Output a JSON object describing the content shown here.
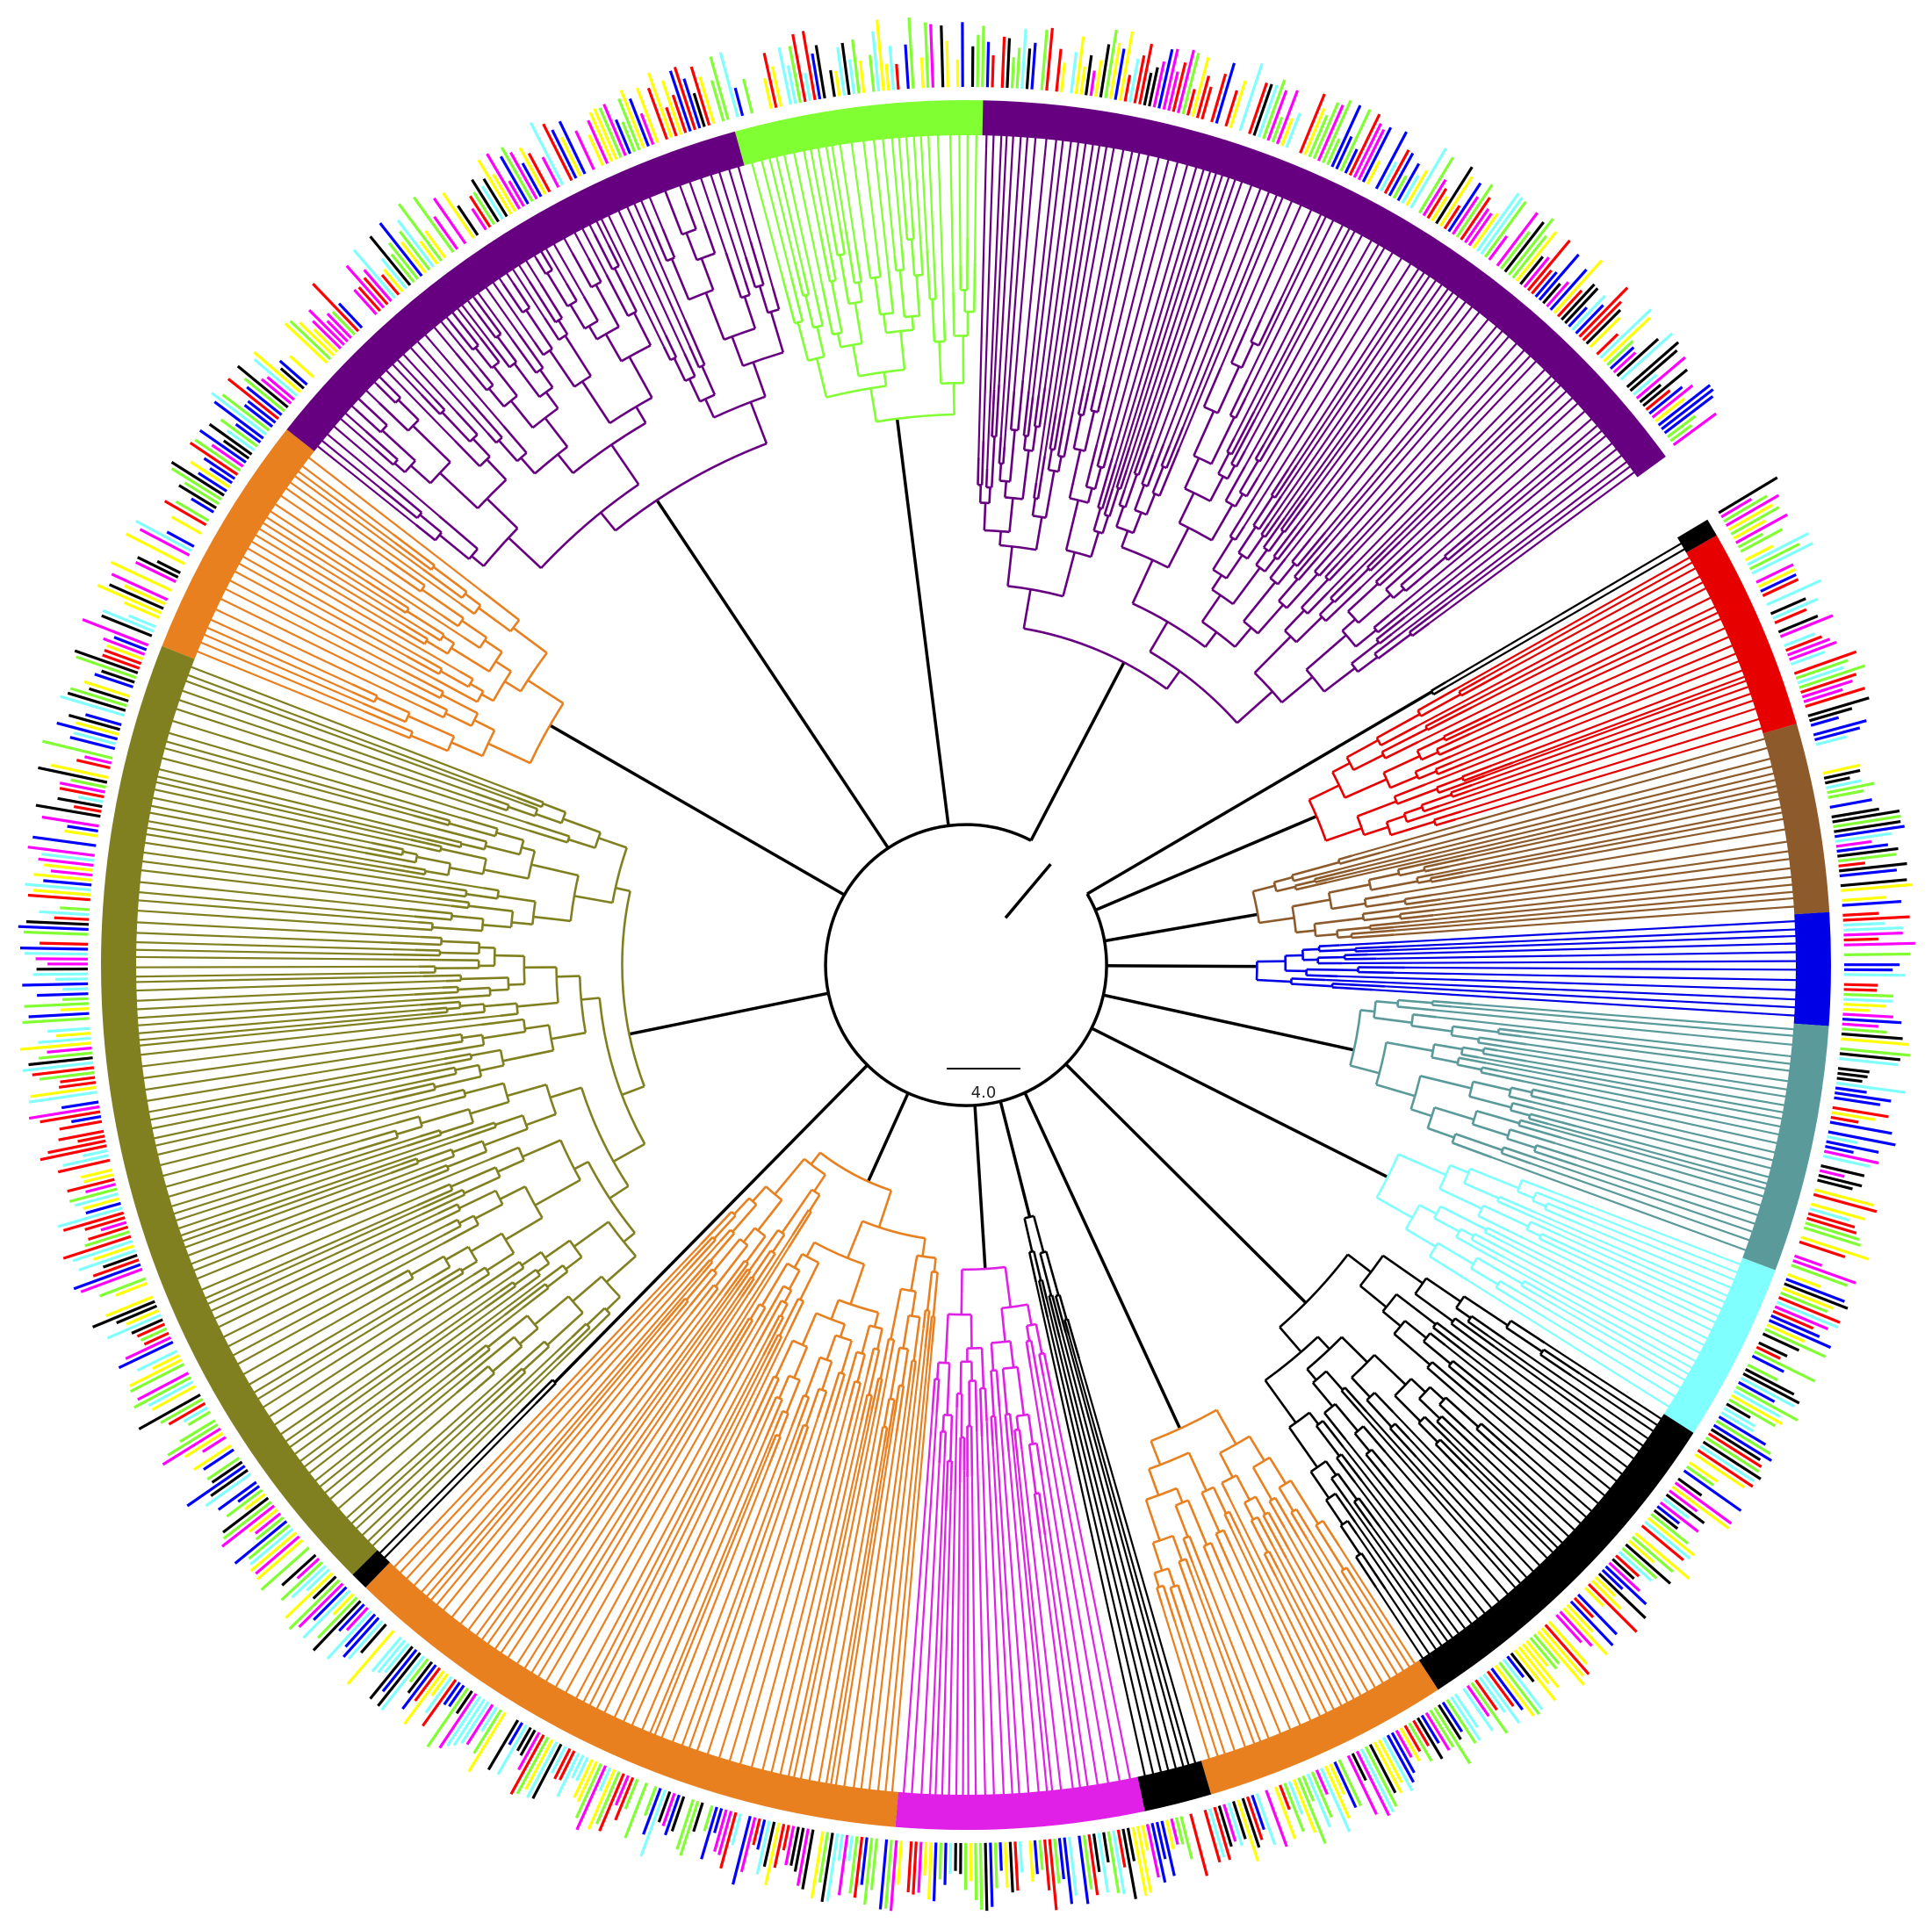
{
  "figure": {
    "type": "circular phylogenetic tree",
    "background": "#ffffff",
    "branch_default_color": "#000000",
    "scale_bar": {
      "label": "4.0",
      "value": 4.0
    }
  },
  "clades": [
    {
      "name": "black-top",
      "color": "#000000",
      "tips": 4
    },
    {
      "name": "red",
      "color": "#e60000",
      "tips": 45
    },
    {
      "name": "brown",
      "color": "#8c5a2b",
      "tips": 42
    },
    {
      "name": "blue",
      "color": "#0000e6",
      "tips": 25
    },
    {
      "name": "teal",
      "color": "#5a9a9a",
      "tips": 55
    },
    {
      "name": "cyan",
      "color": "#80ffff",
      "tips": 40
    },
    {
      "name": "black-right",
      "color": "#000000",
      "tips": 80
    },
    {
      "name": "orange-right",
      "color": "#e88020",
      "tips": 55
    },
    {
      "name": "black-mid",
      "color": "#000000",
      "tips": 15
    },
    {
      "name": "magenta",
      "color": "#e020e6",
      "tips": 55
    },
    {
      "name": "orange-bottom",
      "color": "#e88020",
      "tips": 130
    },
    {
      "name": "black-bottom",
      "color": "#000000",
      "tips": 4
    },
    {
      "name": "olive",
      "color": "#808020",
      "tips": 220
    },
    {
      "name": "orange-left",
      "color": "#e88020",
      "tips": 55
    },
    {
      "name": "purple-lower",
      "color": "#660080",
      "tips": 120
    },
    {
      "name": "green",
      "color": "#80ff33",
      "tips": 55
    },
    {
      "name": "purple-upper",
      "color": "#660080",
      "tips": 175
    }
  ],
  "ring_palette": [
    "#000000",
    "#0000ff",
    "#ff00ff",
    "#ff0000",
    "#80ffff",
    "#80ff33",
    "#ffff00",
    "#ffffff"
  ]
}
